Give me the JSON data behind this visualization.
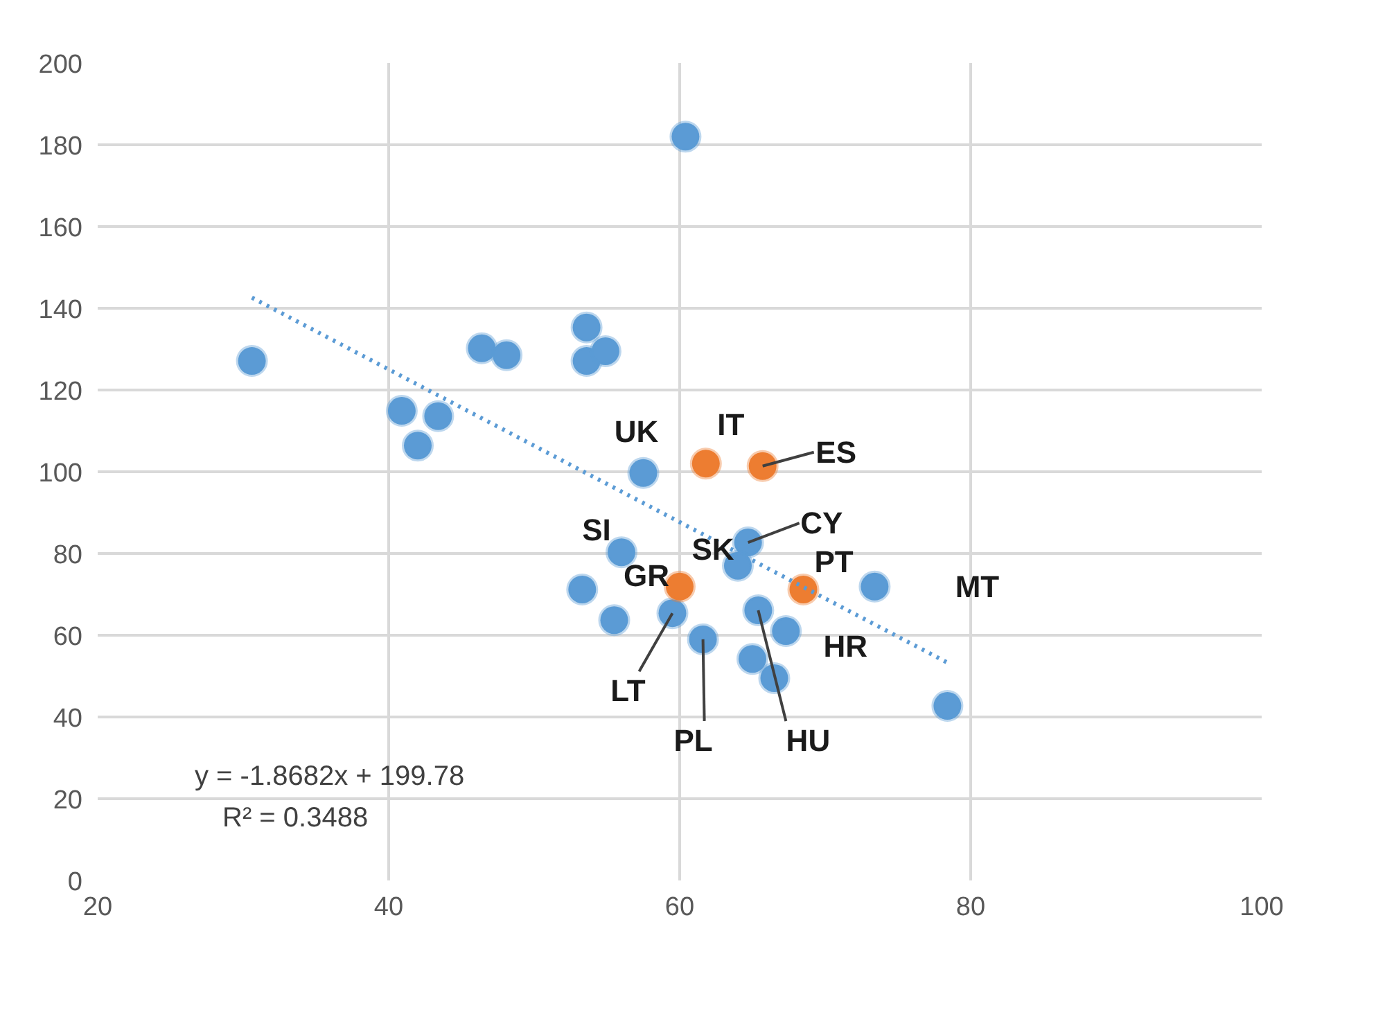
{
  "chart_data": {
    "type": "scatter",
    "xlim": [
      20,
      100
    ],
    "ylim": [
      0,
      200
    ],
    "xticks": [
      20,
      40,
      60,
      80,
      100
    ],
    "yticks": [
      0,
      20,
      40,
      60,
      80,
      100,
      120,
      140,
      160,
      180,
      200
    ],
    "grid": true,
    "marker": "circle",
    "series": [
      {
        "color": "#5b9bd5",
        "x": [
          30.6,
          40.9,
          43.4,
          42.0,
          46.4,
          48.1,
          53.6,
          53.6,
          54.9,
          57.5,
          60.4,
          56.0,
          64.7,
          64.0,
          53.3,
          73.4,
          55.5,
          59.5,
          65.4,
          67.3,
          61.6,
          65.0,
          66.5,
          78.4
        ],
        "values": [
          127.1,
          114.9,
          113.6,
          106.4,
          130.2,
          128.5,
          135.3,
          127.1,
          129.5,
          99.7,
          182,
          80.3,
          82.7,
          77,
          71.2,
          71.9,
          63.7,
          65.4,
          66.1,
          61,
          59,
          54.2,
          49.5,
          42.7
        ]
      },
      {
        "color": "#ed7d31",
        "x": [
          61.8,
          65.7,
          60.0,
          68.5
        ],
        "values": [
          102,
          101.4,
          71.9,
          71.2
        ]
      },
      {
        "type": "line",
        "color": "#5b9bd5",
        "line_style": "dotted",
        "marker": "none",
        "x": [
          30.6,
          78.4
        ],
        "values": [
          142.6,
          53.3
        ]
      }
    ],
    "annotations": [
      {
        "text": "UK",
        "x": 57.5,
        "y": 99.7
      },
      {
        "text": "IT",
        "x": 61.8,
        "y": 102
      },
      {
        "text": "ES",
        "x": 65.7,
        "y": 101.4
      },
      {
        "text": "SI",
        "x": 56.0,
        "y": 80.3
      },
      {
        "text": "CY",
        "x": 64.7,
        "y": 82.7
      },
      {
        "text": "SK",
        "x": 64.0,
        "y": 77
      },
      {
        "text": "GR",
        "x": 60.0,
        "y": 71.9
      },
      {
        "text": "PT",
        "x": 68.5,
        "y": 71.2
      },
      {
        "text": "MT",
        "x": 73.4,
        "y": 71.9
      },
      {
        "text": "HR",
        "x": 67.3,
        "y": 61
      },
      {
        "text": "LT",
        "x": 59.5,
        "y": 65.4
      },
      {
        "text": "PL",
        "x": 61.6,
        "y": 59
      },
      {
        "text": "HU",
        "x": 65.4,
        "y": 66.1
      },
      "y = -1.8682x + 199.78",
      "R² = 0.3488"
    ]
  }
}
